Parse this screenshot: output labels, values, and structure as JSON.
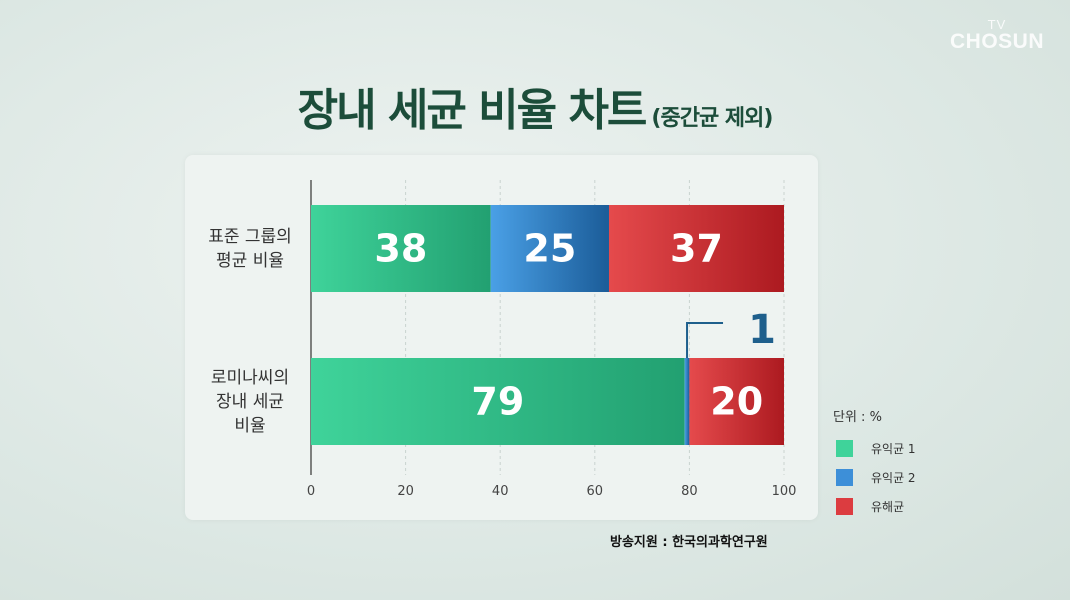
{
  "logo": {
    "line1": "TV",
    "line2": "CHOSUN"
  },
  "title": {
    "main": "장내 세균 비율 차트",
    "sub": "(중간균 제외)"
  },
  "source": "방송지원 : 한국의과학연구원",
  "chart_data": {
    "type": "bar",
    "orientation": "horizontal",
    "stacked": true,
    "categories": [
      "표준 그룹의 평균 비율",
      "로미나씨의 장내 세균 비율"
    ],
    "category_lines": [
      [
        "표준 그룹의",
        "평균 비율"
      ],
      [
        "로미나씨의",
        "장내 세균",
        "비율"
      ]
    ],
    "series": [
      {
        "name": "유익균 1",
        "values": [
          38,
          79
        ],
        "color": "#34c48a"
      },
      {
        "name": "유익균 2",
        "values": [
          25,
          1
        ],
        "color": "#3b8fd8"
      },
      {
        "name": "유해균",
        "values": [
          37,
          20
        ],
        "color": "#d8363a"
      }
    ],
    "data_labels": [
      [
        "38",
        "25",
        "37"
      ],
      [
        "79",
        "1",
        "20"
      ]
    ],
    "xlim": [
      0,
      100
    ],
    "xticks": [
      0,
      20,
      40,
      60,
      80,
      100
    ],
    "grid": true,
    "unit_label": "단위 : %",
    "legend_position": "right"
  }
}
